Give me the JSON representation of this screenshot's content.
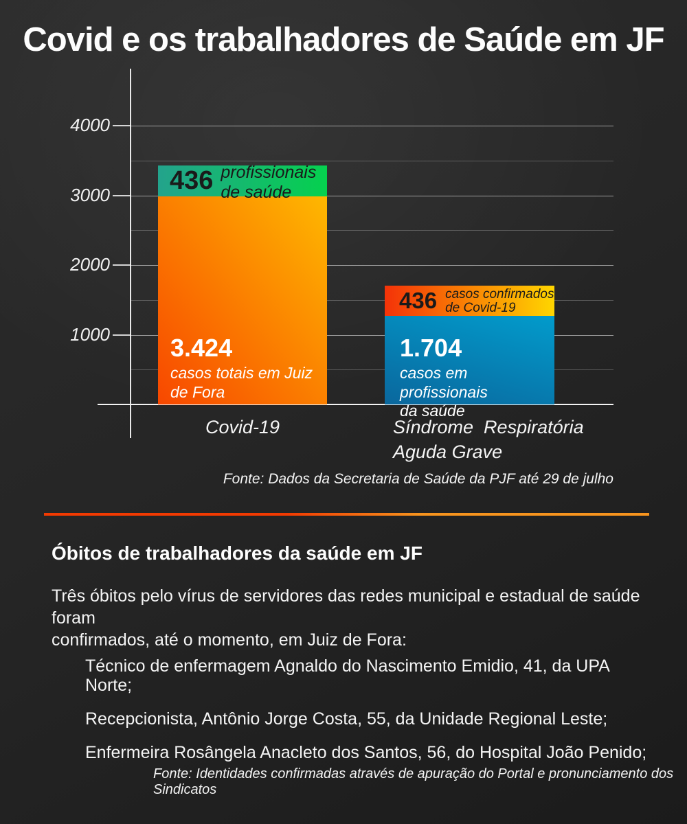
{
  "chart_data": {
    "type": "bar",
    "title": "Covid e os trabalhadores de Saúde em JF",
    "ylim": [
      0,
      4000
    ],
    "grid_step": 500,
    "label_step": 1000,
    "yticks": [
      "1000",
      "2000",
      "3000",
      "4000"
    ],
    "grid": true,
    "legend": "none",
    "categories": [
      "Covid-19",
      "Síndrome  Respiratória\nAguda Grave"
    ],
    "bars": [
      {
        "category": "Covid-19",
        "total": 3424,
        "total_label": "3.424",
        "total_caption": "casos totais em Juiz de Fora",
        "segment_value": 436,
        "segment_label": "436",
        "segment_caption": "profissionais de saúde"
      },
      {
        "category": "Síndrome  Respiratória\nAguda Grave",
        "total": 1704,
        "total_label": "1.704",
        "total_caption": "casos em profissionais\nda saúde",
        "segment_value": 436,
        "segment_label": "436",
        "segment_caption": "casos confirmados\nde Covid-19"
      }
    ],
    "source": "Fonte: Dados da Secretaria de Saúde da PJF até 29 de julho"
  },
  "colors": {
    "background": "#232323",
    "bar_covid_body": [
      "#f74700",
      "#ffc000"
    ],
    "bar_covid_top": [
      "#23a38c",
      "#05d14e"
    ],
    "bar_srag_body": [
      "#00a7d6",
      "#0a679d"
    ],
    "bar_srag_top": [
      "#f43208",
      "#ffd600"
    ],
    "divider": [
      "#f23a01",
      "#f7941e"
    ],
    "segment_text": "#1a1a1a",
    "axis_text": "#f0f0f0"
  },
  "deaths_section": {
    "heading": "Óbitos de trabalhadores da saúde em JF",
    "intro": "Três óbitos pelo vírus de servidores das redes municipal e estadual de saúde foram\nconfirmados, até o momento, em Juiz de Fora:",
    "victims": [
      "Técnico de enfermagem Agnaldo do Nascimento Emidio, 41, da UPA Norte;",
      "Recepcionista, Antônio Jorge Costa, 55, da Unidade Regional Leste;",
      "Enfermeira Rosângela Anacleto dos Santos, 56, do Hospital João Penido;"
    ],
    "source": "Fonte: Identidades confirmadas através de apuração do Portal e pronunciamento dos Sindicatos"
  }
}
